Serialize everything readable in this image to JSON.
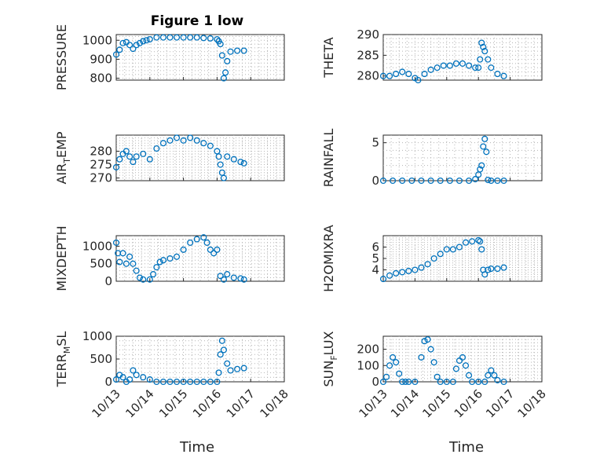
{
  "figure": {
    "title": "Figure 1 low",
    "xlabel": "Time",
    "date_ticks": [
      "10/13",
      "10/14",
      "10/15",
      "10/16",
      "10/17",
      "10/18"
    ],
    "marker_color": "#0072BD"
  },
  "chart_data": [
    {
      "id": "pressure",
      "type": "scatter",
      "ylabel": "PRESSURE",
      "xlim": [
        "10/13",
        "10/18"
      ],
      "ylim": [
        790,
        1030
      ],
      "yticks": [
        800,
        900,
        1000
      ],
      "grid": true,
      "x": [
        13.0,
        13.1,
        13.2,
        13.3,
        13.4,
        13.5,
        13.6,
        13.7,
        13.8,
        13.9,
        14.0,
        14.2,
        14.4,
        14.6,
        14.8,
        15.0,
        15.2,
        15.4,
        15.6,
        15.8,
        16.0,
        16.05,
        16.1,
        16.15,
        16.2,
        16.25,
        16.3,
        16.4,
        16.6,
        16.8
      ],
      "y": [
        925,
        950,
        985,
        990,
        975,
        955,
        975,
        985,
        995,
        1000,
        1005,
        1015,
        1015,
        1015,
        1015,
        1015,
        1015,
        1015,
        1012,
        1010,
        1005,
        995,
        980,
        920,
        800,
        830,
        890,
        940,
        945,
        945
      ]
    },
    {
      "id": "theta",
      "type": "scatter",
      "ylabel": "THETA",
      "xlim": [
        "10/13",
        "10/18"
      ],
      "ylim": [
        279,
        290
      ],
      "yticks": [
        280,
        285,
        290
      ],
      "grid": true,
      "x": [
        13.0,
        13.2,
        13.4,
        13.6,
        13.8,
        14.0,
        14.1,
        14.3,
        14.5,
        14.7,
        14.9,
        15.1,
        15.3,
        15.5,
        15.7,
        15.9,
        16.0,
        16.05,
        16.1,
        16.15,
        16.2,
        16.3,
        16.4,
        16.6,
        16.8
      ],
      "y": [
        280,
        280,
        280.5,
        281,
        280.5,
        279.5,
        279,
        280.5,
        281.5,
        282,
        282.5,
        282.5,
        283,
        283,
        282.5,
        282,
        282,
        284,
        288,
        287,
        286,
        284,
        282,
        280.5,
        280
      ]
    },
    {
      "id": "air_temp",
      "type": "scatter",
      "ylabel": "AIR_TEMP",
      "xlim": [
        "10/13",
        "10/18"
      ],
      "ylim": [
        269,
        286
      ],
      "yticks": [
        270,
        275,
        280
      ],
      "grid": true,
      "x": [
        13.0,
        13.1,
        13.2,
        13.3,
        13.4,
        13.5,
        13.6,
        13.8,
        14.0,
        14.2,
        14.4,
        14.6,
        14.8,
        15.0,
        15.2,
        15.4,
        15.6,
        15.8,
        16.0,
        16.05,
        16.1,
        16.15,
        16.2,
        16.3,
        16.5,
        16.7,
        16.8
      ],
      "y": [
        274,
        277,
        279,
        280,
        278,
        276,
        278,
        279,
        277,
        281,
        283,
        284,
        285,
        284,
        285,
        284,
        283,
        282,
        280,
        278,
        275,
        272,
        270,
        278,
        277,
        276,
        275.5
      ]
    },
    {
      "id": "rainfall",
      "type": "scatter",
      "ylabel": "RAINFALL",
      "xlim": [
        "10/13",
        "10/18"
      ],
      "ylim": [
        0,
        6
      ],
      "yticks": [
        0,
        5
      ],
      "grid": true,
      "x": [
        13.0,
        13.3,
        13.6,
        13.9,
        14.2,
        14.5,
        14.8,
        15.1,
        15.4,
        15.7,
        15.9,
        16.0,
        16.05,
        16.1,
        16.15,
        16.2,
        16.25,
        16.3,
        16.4,
        16.6,
        16.8
      ],
      "y": [
        0,
        0,
        0,
        0,
        0,
        0,
        0,
        0,
        0,
        0,
        0.2,
        0.8,
        1.5,
        2.0,
        4.5,
        5.5,
        3.8,
        0.1,
        0,
        0,
        0
      ]
    },
    {
      "id": "mixdepth",
      "type": "scatter",
      "ylabel": "MIXDEPTH",
      "xlim": [
        "10/13",
        "10/18"
      ],
      "ylim": [
        0,
        1300
      ],
      "yticks": [
        0,
        500,
        1000
      ],
      "grid": true,
      "x": [
        13.0,
        13.05,
        13.1,
        13.2,
        13.3,
        13.4,
        13.5,
        13.6,
        13.7,
        13.8,
        14.0,
        14.1,
        14.2,
        14.3,
        14.4,
        14.6,
        14.8,
        15.0,
        15.2,
        15.4,
        15.6,
        15.7,
        15.8,
        15.9,
        16.0,
        16.1,
        16.2,
        16.3,
        16.5,
        16.7,
        16.8
      ],
      "y": [
        1100,
        800,
        550,
        800,
        500,
        700,
        500,
        300,
        100,
        50,
        50,
        200,
        400,
        550,
        600,
        650,
        700,
        900,
        1100,
        1200,
        1250,
        1100,
        900,
        800,
        900,
        150,
        50,
        200,
        100,
        80,
        50
      ]
    },
    {
      "id": "h2omixra",
      "type": "scatter",
      "ylabel": "H2OMIXRA",
      "xlim": [
        "10/13",
        "10/18"
      ],
      "ylim": [
        3,
        7
      ],
      "yticks": [
        4,
        5,
        6
      ],
      "grid": true,
      "x": [
        13.0,
        13.2,
        13.4,
        13.6,
        13.8,
        14.0,
        14.2,
        14.4,
        14.6,
        14.8,
        15.0,
        15.2,
        15.4,
        15.6,
        15.8,
        16.0,
        16.05,
        16.1,
        16.15,
        16.2,
        16.3,
        16.4,
        16.6,
        16.8
      ],
      "y": [
        3.2,
        3.5,
        3.7,
        3.8,
        3.9,
        4.0,
        4.2,
        4.5,
        5.0,
        5.4,
        5.8,
        5.8,
        6.0,
        6.4,
        6.5,
        6.6,
        6.5,
        5.8,
        4.0,
        3.6,
        4.0,
        4.1,
        4.1,
        4.2
      ]
    },
    {
      "id": "terr_msl",
      "type": "scatter",
      "ylabel": "TERR_MSL",
      "xlim": [
        "10/13",
        "10/18"
      ],
      "ylim": [
        0,
        1000
      ],
      "yticks": [
        0,
        500,
        1000
      ],
      "grid": true,
      "x": [
        13.0,
        13.1,
        13.2,
        13.3,
        13.4,
        13.5,
        13.6,
        13.8,
        14.0,
        14.2,
        14.4,
        14.6,
        14.8,
        15.0,
        15.2,
        15.4,
        15.6,
        15.8,
        16.0,
        16.05,
        16.1,
        16.15,
        16.2,
        16.3,
        16.4,
        16.6,
        16.8
      ],
      "y": [
        50,
        150,
        100,
        0,
        50,
        250,
        150,
        100,
        50,
        0,
        0,
        0,
        0,
        0,
        0,
        0,
        0,
        0,
        0,
        200,
        600,
        900,
        700,
        400,
        250,
        280,
        300
      ]
    },
    {
      "id": "sun_flux",
      "type": "scatter",
      "ylabel": "SUN_FLUX",
      "xlim": [
        "10/13",
        "10/18"
      ],
      "ylim": [
        0,
        280
      ],
      "yticks": [
        0,
        100,
        200
      ],
      "grid": true,
      "x": [
        13.0,
        13.1,
        13.2,
        13.3,
        13.4,
        13.5,
        13.6,
        13.7,
        13.8,
        14.0,
        14.2,
        14.3,
        14.4,
        14.5,
        14.6,
        14.7,
        14.8,
        15.0,
        15.2,
        15.3,
        15.4,
        15.5,
        15.6,
        15.7,
        15.8,
        16.0,
        16.2,
        16.3,
        16.4,
        16.5,
        16.6,
        16.8
      ],
      "y": [
        0,
        30,
        100,
        150,
        120,
        50,
        0,
        0,
        0,
        0,
        150,
        250,
        260,
        200,
        120,
        30,
        0,
        0,
        0,
        80,
        130,
        150,
        100,
        40,
        0,
        0,
        0,
        40,
        70,
        40,
        10,
        0
      ]
    }
  ]
}
